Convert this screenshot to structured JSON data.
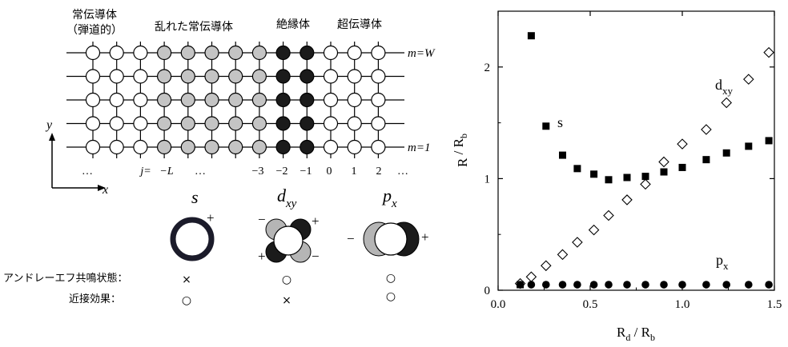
{
  "lattice": {
    "region_labels": [
      "常伝導体",
      "（弾道的）",
      "乱れた常伝導体",
      "絶縁体",
      "超伝導体"
    ],
    "row_label_top": "m=W",
    "row_label_bottom": "m=1",
    "y_axis_label": "y",
    "x_axis_label": "x",
    "site_index_labels": [
      "…",
      "j=",
      "−L",
      "…",
      "−3",
      "−2",
      "−1",
      "0",
      "1",
      "2",
      "…"
    ],
    "rows": 5,
    "columns": [
      {
        "kind": "normal"
      },
      {
        "kind": "normal"
      },
      {
        "kind": "normal"
      },
      {
        "kind": "disordered"
      },
      {
        "kind": "disordered"
      },
      {
        "kind": "disordered"
      },
      {
        "kind": "disordered"
      },
      {
        "kind": "disordered"
      },
      {
        "kind": "insulator"
      },
      {
        "kind": "insulator"
      },
      {
        "kind": "super"
      },
      {
        "kind": "super"
      },
      {
        "kind": "super"
      }
    ],
    "colors": {
      "normal": "#ffffff",
      "disordered": "#c4c4c4",
      "insulator": "#1b1b1b",
      "super": "#ffffff"
    }
  },
  "symmetry": {
    "items": [
      {
        "name": "s",
        "sub": "",
        "signs": [
          "+"
        ]
      },
      {
        "name": "d",
        "sub": "xy",
        "signs": [
          "−",
          "+",
          "+",
          "−"
        ]
      },
      {
        "name": "p",
        "sub": "x",
        "signs": [
          "−",
          "+"
        ]
      }
    ],
    "property_rows": [
      {
        "label": "アンドレーエフ共鳴状態：",
        "marks": [
          "×",
          "○",
          "○"
        ]
      },
      {
        "label": "近接効果：",
        "marks": [
          "○",
          "×",
          "○"
        ]
      }
    ]
  },
  "chart_data": {
    "type": "scatter",
    "xlabel": "Rd / Rb",
    "ylabel": "R / Rb",
    "xlim": [
      0.0,
      1.5
    ],
    "ylim": [
      0.0,
      2.5
    ],
    "x_ticks": [
      "0.0",
      "0.5",
      "1.0",
      "1.5"
    ],
    "y_ticks": [
      "0",
      "1",
      "2"
    ],
    "grid": false,
    "series": [
      {
        "name": "s",
        "marker": "filled-square",
        "x": [
          0.12,
          0.18,
          0.26,
          0.35,
          0.43,
          0.52,
          0.6,
          0.7,
          0.8,
          0.9,
          1.0,
          1.13,
          1.24,
          1.36,
          1.47
        ],
        "y": [
          0.05,
          2.28,
          1.47,
          1.21,
          1.09,
          1.04,
          0.99,
          1.01,
          1.02,
          1.06,
          1.1,
          1.17,
          1.23,
          1.29,
          1.34
        ]
      },
      {
        "name": "dxy",
        "marker": "open-diamond",
        "x": [
          0.12,
          0.18,
          0.26,
          0.35,
          0.43,
          0.52,
          0.6,
          0.7,
          0.8,
          0.9,
          1.0,
          1.13,
          1.24,
          1.36,
          1.47
        ],
        "y": [
          0.06,
          0.12,
          0.22,
          0.32,
          0.43,
          0.54,
          0.67,
          0.81,
          0.95,
          1.15,
          1.31,
          1.44,
          1.68,
          1.89,
          2.13
        ]
      },
      {
        "name": "px",
        "marker": "filled-circle",
        "x": [
          0.12,
          0.18,
          0.26,
          0.35,
          0.43,
          0.52,
          0.6,
          0.7,
          0.8,
          0.9,
          1.0,
          1.13,
          1.24,
          1.36,
          1.47
        ],
        "y": [
          0.05,
          0.05,
          0.05,
          0.05,
          0.05,
          0.05,
          0.05,
          0.05,
          0.05,
          0.05,
          0.05,
          0.05,
          0.05,
          0.05,
          0.05
        ]
      }
    ],
    "annotations": [
      {
        "base": "s",
        "sub": "",
        "series": "s"
      },
      {
        "base": "d",
        "sub": "xy",
        "series": "dxy"
      },
      {
        "base": "p",
        "sub": "x",
        "series": "px"
      }
    ]
  }
}
